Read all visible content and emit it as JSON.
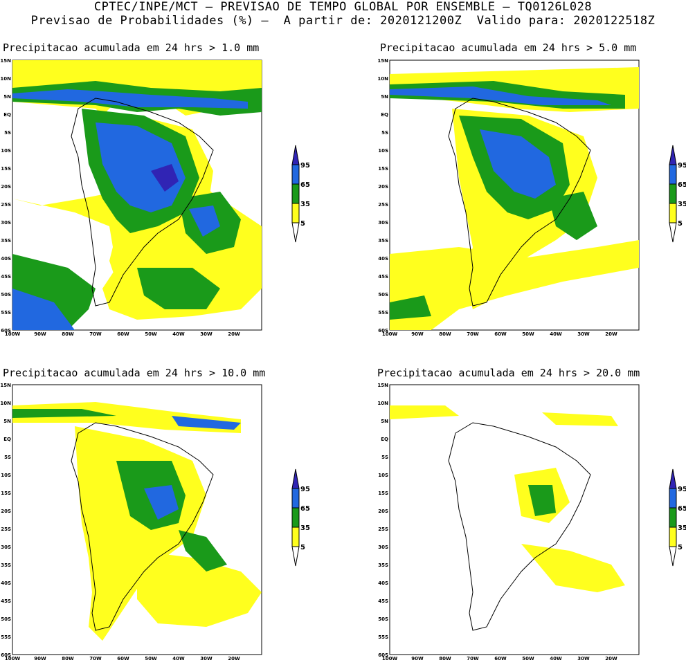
{
  "header": {
    "line1": "CPTEC/INPE/MCT – PREVISAO DE TEMPO GLOBAL POR ENSEMBLE – TQ0126L028",
    "line2": "Previsao de Probabilidades (%) –  A partir de: 2020121200Z  Valido para: 2020122518Z"
  },
  "panels": [
    {
      "title": "Precipitacao acumulada em 24 hrs > 1.0 mm"
    },
    {
      "title": "Precipitacao acumulada em 24 hrs > 5.0 mm"
    },
    {
      "title": "Precipitacao acumulada em 24 hrs > 10.0 mm"
    },
    {
      "title": "Precipitacao acumulada em 24 hrs > 20.0 mm"
    }
  ],
  "axes": {
    "lat_labels": [
      "15N",
      "10N",
      "5N",
      "EQ",
      "5S",
      "10S",
      "15S",
      "20S",
      "25S",
      "30S",
      "35S",
      "40S",
      "45S",
      "50S",
      "55S",
      "60S"
    ],
    "lon_labels": [
      "100W",
      "90W",
      "80W",
      "70W",
      "60W",
      "50W",
      "40W",
      "30W",
      "20W"
    ]
  },
  "colorbar": {
    "levels": [
      "95",
      "65",
      "35",
      "5"
    ],
    "colors": {
      "yellow": "#ffff1e",
      "green": "#1a9a1a",
      "blue": "#2168e0",
      "dark": "#3024b4"
    }
  }
}
